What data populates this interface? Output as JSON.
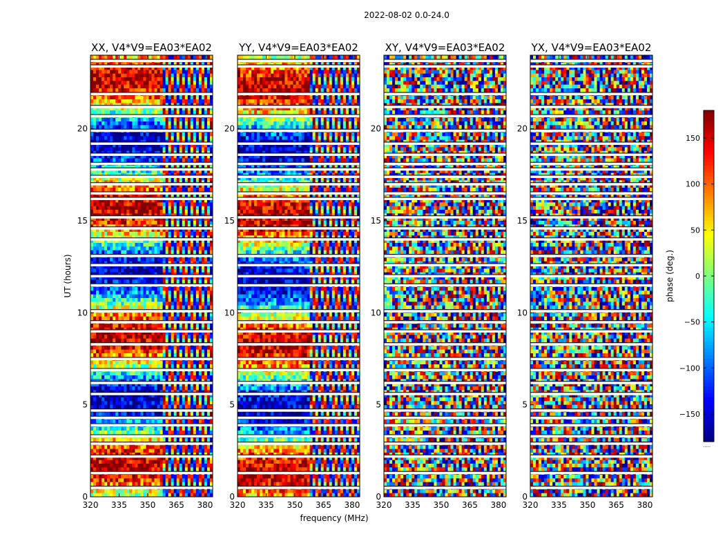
{
  "figure_title": "2022-08-02 0.0-24.0",
  "chart_data": {
    "type": "heatmap",
    "title": "2022-08-02 0.0-24.0",
    "xlabel": "frequency (MHz)",
    "ylabel": "UT (hours)",
    "xlim": [
      320,
      384
    ],
    "ylim": [
      0,
      24
    ],
    "xticks": [
      320,
      335,
      350,
      365,
      380
    ],
    "yticks": [
      0,
      5,
      10,
      15,
      20
    ],
    "colorbar": {
      "label": "phase (deg.)",
      "colormap": "jet",
      "range": [
        -180,
        180
      ],
      "ticks": [
        150,
        100,
        50,
        0,
        -50,
        -100,
        -150
      ],
      "tick_labels": [
        "150",
        "100",
        "50",
        "0",
        "−50",
        "−100",
        "−150"
      ],
      "offset_text": "....."
    },
    "panels": [
      {
        "name": "XX",
        "title": "XX, V4*V9=EA03*EA02",
        "style": "parallel"
      },
      {
        "name": "YY",
        "title": "YY, V4*V9=EA03*EA02",
        "style": "parallel"
      },
      {
        "name": "XY",
        "title": "XY, V4*V9=EA03*EA02",
        "style": "cross"
      },
      {
        "name": "YX",
        "title": "YX, V4*V9=EA03*EA02",
        "style": "cross"
      }
    ],
    "flagged_gaps_ut_hours": [
      0.5,
      1.3,
      2.2,
      2.9,
      3.3,
      3.9,
      4.3,
      4.7,
      5.6,
      6.2,
      6.9,
      7.5,
      8.3,
      9.0,
      9.5,
      10.1,
      11.5,
      12.0,
      12.6,
      13.1,
      14.0,
      14.6,
      15.2,
      16.2,
      16.5,
      17.0,
      17.4,
      17.8,
      18.1,
      18.6,
      19.2,
      19.9,
      20.7,
      21.2,
      21.9,
      23.4,
      23.7
    ]
  }
}
